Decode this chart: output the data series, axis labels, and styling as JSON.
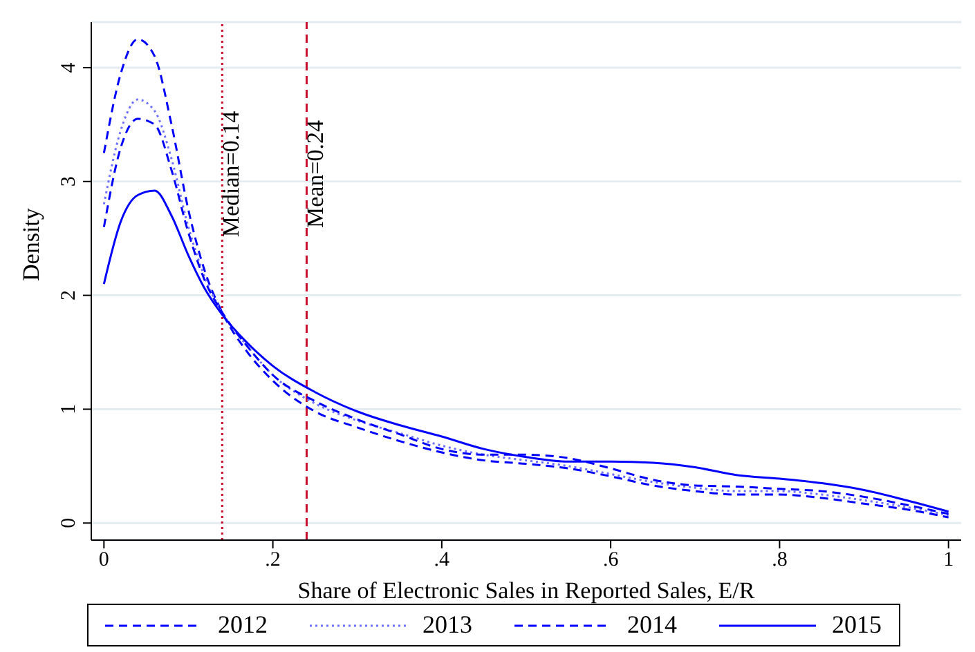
{
  "chart_data": {
    "type": "line",
    "xlabel": "Share of Electronic Sales in Reported Sales, E/R",
    "ylabel": "Density",
    "x": [
      0,
      0.02,
      0.04,
      0.06,
      0.08,
      0.1,
      0.12,
      0.14,
      0.17,
      0.2,
      0.25,
      0.3,
      0.35,
      0.4,
      0.45,
      0.5,
      0.55,
      0.6,
      0.65,
      0.7,
      0.75,
      0.8,
      0.85,
      0.9,
      0.95,
      1
    ],
    "series": [
      {
        "name": "2012",
        "color": "#0000ff",
        "line_style": "dashed",
        "values": [
          3.25,
          3.95,
          4.25,
          4.1,
          3.5,
          2.75,
          2.2,
          1.85,
          1.5,
          1.25,
          0.98,
          0.84,
          0.72,
          0.62,
          0.55,
          0.52,
          0.48,
          0.41,
          0.33,
          0.28,
          0.25,
          0.25,
          0.22,
          0.17,
          0.12,
          0.05
        ]
      },
      {
        "name": "2013",
        "color": "#6f6fff",
        "line_style": "dotted",
        "values": [
          2.8,
          3.45,
          3.72,
          3.62,
          3.2,
          2.6,
          2.15,
          1.85,
          1.55,
          1.3,
          1.05,
          0.9,
          0.79,
          0.68,
          0.6,
          0.55,
          0.5,
          0.43,
          0.36,
          0.31,
          0.28,
          0.28,
          0.25,
          0.2,
          0.14,
          0.07
        ]
      },
      {
        "name": "2014",
        "color": "#0000ff",
        "line_style": "dashed",
        "values": [
          2.6,
          3.3,
          3.55,
          3.5,
          3.1,
          2.55,
          2.12,
          1.85,
          1.55,
          1.3,
          1.07,
          0.91,
          0.78,
          0.65,
          0.6,
          0.6,
          0.57,
          0.48,
          0.38,
          0.33,
          0.32,
          0.3,
          0.28,
          0.23,
          0.16,
          0.08
        ]
      },
      {
        "name": "2015",
        "color": "#0000ff",
        "line_style": "solid",
        "values": [
          2.1,
          2.65,
          2.88,
          2.92,
          2.7,
          2.35,
          2.05,
          1.83,
          1.58,
          1.38,
          1.15,
          0.98,
          0.86,
          0.76,
          0.65,
          0.58,
          0.54,
          0.54,
          0.53,
          0.49,
          0.42,
          0.39,
          0.35,
          0.29,
          0.2,
          0.1
        ]
      }
    ],
    "xlim": [
      -0.015,
      1.015
    ],
    "xticks": [
      0,
      {
        "value": 0.2,
        "label": ".2"
      },
      {
        "value": 0.4,
        "label": ".4"
      },
      {
        "value": 0.6,
        "label": ".6"
      },
      {
        "value": 0.8,
        "label": ".8"
      },
      1
    ],
    "ylim": [
      -0.15,
      4.4
    ],
    "yticks": [
      0,
      1,
      2,
      3,
      4
    ],
    "ref_lines": [
      {
        "axis": "x",
        "value": 0.14,
        "label": "Median=0.14",
        "color": "#c8102e",
        "line_style": "dotted"
      },
      {
        "axis": "x",
        "value": 0.24,
        "label": "Mean=0.24",
        "color": "#c8102e",
        "line_style": "dashed"
      }
    ],
    "grid": "y",
    "legend": "bottom",
    "marker": "none"
  }
}
